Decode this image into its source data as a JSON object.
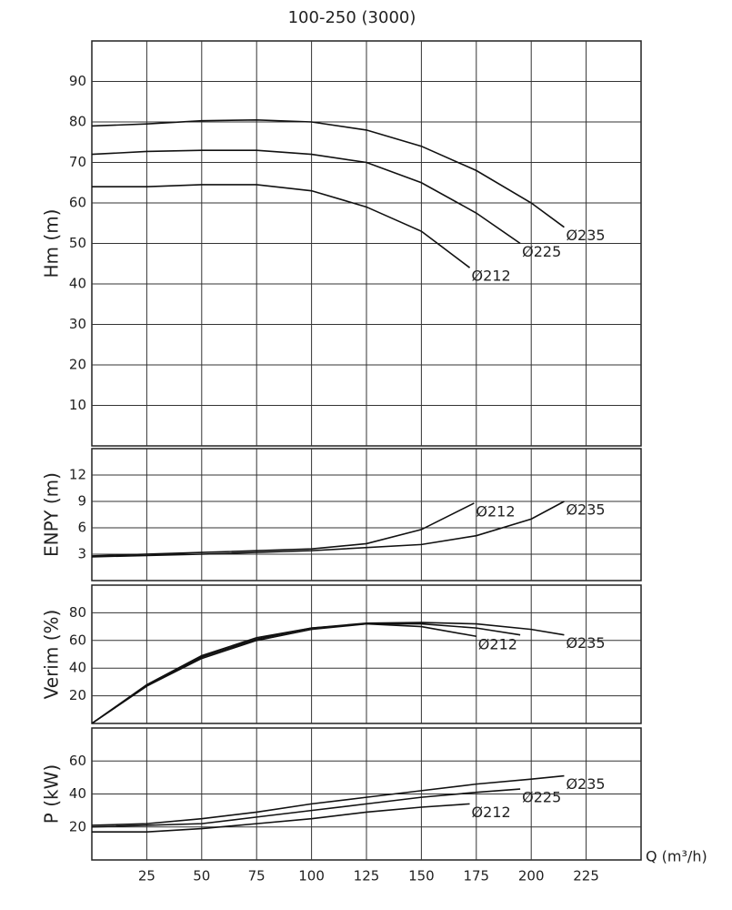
{
  "chart_data": [
    {
      "type": "line",
      "title": "100-250 (3000)",
      "ylabel": "Hm (m)",
      "xlim": [
        0,
        250
      ],
      "xticks": [
        25,
        50,
        75,
        100,
        125,
        150,
        175,
        200,
        225
      ],
      "ylim": [
        0,
        100
      ],
      "yticks": [
        10,
        20,
        30,
        40,
        50,
        60,
        70,
        80,
        90
      ],
      "grid": true,
      "color": "#111111",
      "series": [
        {
          "name": "Ø235",
          "x": [
            0,
            25,
            50,
            75,
            100,
            125,
            150,
            175,
            200,
            215
          ],
          "values": [
            79,
            79.5,
            80.3,
            80.5,
            80,
            78,
            74,
            68,
            60,
            54
          ]
        },
        {
          "name": "Ø225",
          "x": [
            0,
            25,
            50,
            75,
            100,
            125,
            150,
            175,
            195
          ],
          "values": [
            72,
            72.7,
            73,
            73,
            72,
            70,
            65,
            57.5,
            50
          ]
        },
        {
          "name": "Ø212",
          "x": [
            0,
            25,
            50,
            75,
            100,
            125,
            150,
            172
          ],
          "values": [
            64,
            64,
            64.5,
            64.5,
            63,
            59,
            53,
            44
          ]
        }
      ]
    },
    {
      "type": "line",
      "ylabel": "ENPY (m)",
      "xlim": [
        0,
        250
      ],
      "xticks": [
        25,
        50,
        75,
        100,
        125,
        150,
        175,
        200,
        225
      ],
      "ylim": [
        0,
        15
      ],
      "yticks": [
        3,
        6,
        9,
        12
      ],
      "grid": true,
      "color": "#111111",
      "series": [
        {
          "name": "Ø212",
          "x": [
            0,
            50,
            100,
            125,
            150,
            174
          ],
          "values": [
            2.8,
            3.2,
            3.6,
            4.2,
            5.8,
            8.8
          ]
        },
        {
          "name": "Ø235",
          "x": [
            0,
            50,
            100,
            150,
            175,
            200,
            215
          ],
          "values": [
            2.7,
            3.0,
            3.4,
            4.1,
            5.1,
            7,
            9
          ]
        }
      ]
    },
    {
      "type": "line",
      "ylabel": "Verim (%)",
      "xlim": [
        0,
        250
      ],
      "xticks": [
        25,
        50,
        75,
        100,
        125,
        150,
        175,
        200,
        225
      ],
      "ylim": [
        0,
        100
      ],
      "yticks": [
        20,
        40,
        60,
        80
      ],
      "grid": true,
      "color": "#111111",
      "series": [
        {
          "name": "Ø212",
          "x": [
            0,
            25,
            50,
            75,
            100,
            125,
            150,
            175
          ],
          "values": [
            0,
            27,
            47,
            60,
            68,
            72,
            70,
            63
          ]
        },
        {
          "x": [
            0,
            25,
            50,
            75,
            100,
            125,
            150,
            175,
            195
          ],
          "values": [
            0,
            27,
            48,
            61,
            69,
            72,
            72,
            69,
            64
          ]
        },
        {
          "name": "Ø235",
          "x": [
            0,
            25,
            50,
            75,
            100,
            125,
            150,
            175,
            200,
            215
          ],
          "values": [
            0,
            28,
            49,
            62,
            69,
            72.5,
            73,
            72,
            68,
            64
          ]
        }
      ]
    },
    {
      "type": "line",
      "ylabel": "P (kW)",
      "xlabel": "Q (m³/h)",
      "xlim": [
        0,
        250
      ],
      "xticks": [
        25,
        50,
        75,
        100,
        125,
        150,
        175,
        200,
        225
      ],
      "ylim": [
        0,
        80
      ],
      "yticks": [
        20,
        40,
        60
      ],
      "grid": true,
      "color": "#111111",
      "series": [
        {
          "name": "Ø235",
          "x": [
            0,
            25,
            50,
            75,
            100,
            125,
            150,
            175,
            200,
            215
          ],
          "values": [
            21,
            22,
            25,
            29,
            34,
            38,
            42,
            46,
            49,
            51
          ]
        },
        {
          "name": "Ø225",
          "x": [
            0,
            50,
            75,
            100,
            125,
            150,
            175,
            195
          ],
          "values": [
            20,
            22,
            26,
            30,
            34,
            38,
            41,
            43
          ]
        },
        {
          "name": "Ø212",
          "x": [
            0,
            25,
            50,
            75,
            100,
            125,
            150,
            172
          ],
          "values": [
            17,
            17,
            19,
            22,
            25,
            29,
            32,
            34
          ]
        }
      ]
    }
  ]
}
